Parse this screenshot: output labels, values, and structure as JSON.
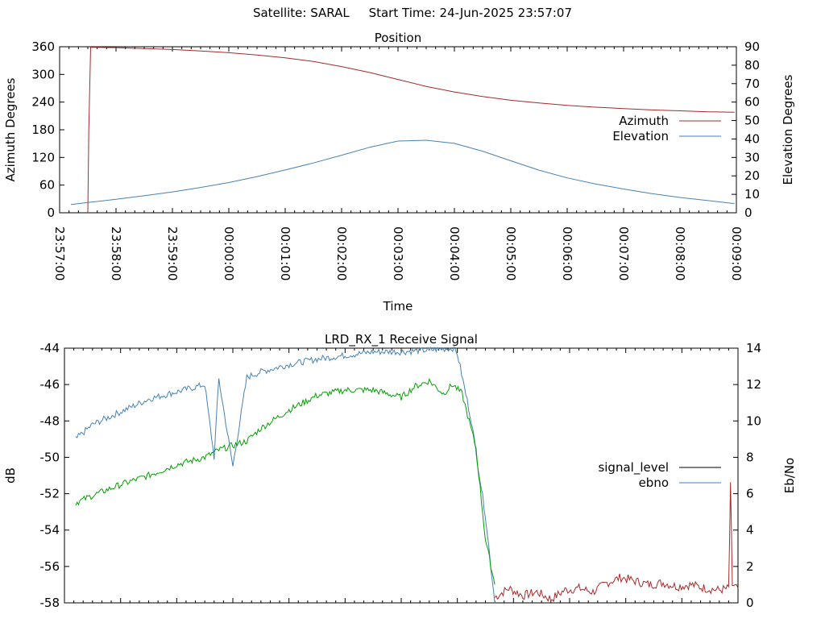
{
  "header": {
    "satellite_label": "Satellite: SARAL",
    "start_label": "Start Time: 24-Jun-2025 23:57:07"
  },
  "chart_data": [
    {
      "type": "line",
      "title": "Position",
      "xlabel": "Time",
      "ylabel": "Azimuth Degrees",
      "y2label": "Elevation Degrees",
      "xlim": [
        "23:57:00",
        "00:09:00"
      ],
      "ylim": [
        0,
        360
      ],
      "y2lim": [
        0,
        90
      ],
      "x_ticks": [
        "23:57:00",
        "23:58:00",
        "23:59:00",
        "00:00:00",
        "00:01:00",
        "00:02:00",
        "00:03:00",
        "00:04:00",
        "00:05:00",
        "00:06:00",
        "00:07:00",
        "00:08:00",
        "00:09:00"
      ],
      "y_ticks": [
        "0",
        "60",
        "120",
        "180",
        "240",
        "300",
        "360"
      ],
      "y2_ticks": [
        "0",
        "10",
        "20",
        "30",
        "40",
        "50",
        "60",
        "70",
        "80",
        "90"
      ],
      "legend_position": "right",
      "series": [
        {
          "name": "Azimuth",
          "axis": "left",
          "color": "#a52a2a",
          "x": [
            "23:57:30",
            "23:57:31",
            "23:57:31",
            "23:57:33",
            "23:58:00",
            "23:58:30",
            "23:59:00",
            "23:59:30",
            "00:00:00",
            "00:00:30",
            "00:01:00",
            "00:01:30",
            "00:02:00",
            "00:02:30",
            "00:03:00",
            "00:03:30",
            "00:04:00",
            "00:04:30",
            "00:05:00",
            "00:05:30",
            "00:06:00",
            "00:06:30",
            "00:07:00",
            "00:07:30",
            "00:08:00",
            "00:08:30",
            "00:08:58"
          ],
          "values": [
            0,
            180,
            180,
            359,
            358,
            356,
            354,
            351,
            347,
            342,
            336,
            328,
            317,
            304,
            289,
            274,
            262,
            252,
            244,
            238,
            233,
            229,
            226,
            223,
            221,
            219,
            218
          ]
        },
        {
          "name": "Elevation",
          "axis": "right",
          "color": "#4682b4",
          "x": [
            "23:57:12",
            "23:57:30",
            "23:58:00",
            "23:58:30",
            "23:59:00",
            "23:59:30",
            "00:00:00",
            "00:00:30",
            "00:01:00",
            "00:01:30",
            "00:02:00",
            "00:02:30",
            "00:03:00",
            "00:03:30",
            "00:04:00",
            "00:04:30",
            "00:05:00",
            "00:05:30",
            "00:06:00",
            "00:06:30",
            "00:07:00",
            "00:07:30",
            "00:08:00",
            "00:08:30",
            "00:08:58"
          ],
          "values": [
            4.5,
            5.6,
            7.3,
            9.2,
            11.3,
            13.7,
            16.4,
            19.6,
            23.2,
            27,
            31.2,
            35.5,
            38.9,
            39.3,
            37.6,
            33.4,
            28.2,
            23.1,
            18.9,
            15.6,
            12.9,
            10.4,
            8.3,
            6.6,
            5
          ]
        }
      ]
    },
    {
      "type": "line",
      "title": "LRD_RX_1 Receive Signal",
      "xlabel": "",
      "ylabel": "dB",
      "y2label": "Eb/No",
      "xlim": [
        "23:57:00",
        "00:09:00"
      ],
      "ylim": [
        -58,
        -44
      ],
      "y2lim": [
        0,
        14
      ],
      "y_ticks": [
        "-44",
        "-46",
        "-48",
        "-50",
        "-52",
        "-54",
        "-56",
        "-58"
      ],
      "y2_ticks": [
        "0",
        "2",
        "4",
        "6",
        "8",
        "10",
        "12",
        "14"
      ],
      "legend_position": "right",
      "series": [
        {
          "name": "signal_level",
          "axis": "left",
          "color": "#a52a2a",
          "legend_color": "#000000",
          "x": [
            "00:04:40",
            "00:04:55",
            "00:05:10",
            "00:05:25",
            "00:05:40",
            "00:05:55",
            "00:06:10",
            "00:06:25",
            "00:06:40",
            "00:06:55",
            "00:07:10",
            "00:07:25",
            "00:07:40",
            "00:07:55",
            "00:08:10",
            "00:08:25",
            "00:08:40",
            "00:08:50",
            "00:08:52",
            "00:08:54",
            "00:09:00"
          ],
          "values": [
            -57.7,
            -57.2,
            -57.6,
            -57.4,
            -57.8,
            -57.3,
            -57.2,
            -57.4,
            -56.9,
            -56.6,
            -56.8,
            -57.0,
            -56.9,
            -57.1,
            -57.0,
            -57.2,
            -57.3,
            -57.2,
            -51.6,
            -57.0,
            -57.2
          ]
        },
        {
          "name": "ebno",
          "axis": "right",
          "color": "#4682b4",
          "x": [
            "23:57:12",
            "23:57:30",
            "23:58:00",
            "23:58:30",
            "23:59:00",
            "23:59:30",
            "23:59:40",
            "23:59:45",
            "00:00:00",
            "00:00:15",
            "00:00:30",
            "00:01:00",
            "00:01:30",
            "00:02:00",
            "00:02:30",
            "00:03:00",
            "00:03:30",
            "00:03:55",
            "00:04:00",
            "00:04:15",
            "00:04:30",
            "00:04:40"
          ],
          "values": [
            9,
            9.8,
            10.5,
            11.2,
            11.6,
            12.0,
            8.0,
            12.3,
            7.5,
            12.4,
            12.7,
            13.1,
            13.4,
            13.6,
            13.8,
            13.8,
            13.9,
            14,
            13.7,
            10,
            4.8,
            0
          ]
        },
        {
          "name": "",
          "axis": "right",
          "color": "#00a000",
          "x": [
            "23:57:12",
            "23:57:30",
            "23:58:00",
            "23:58:30",
            "23:59:00",
            "23:59:30",
            "23:59:45",
            "00:00:15",
            "00:00:30",
            "00:01:00",
            "00:01:30",
            "00:02:00",
            "00:02:30",
            "00:03:00",
            "00:03:15",
            "00:03:30",
            "00:03:45",
            "00:03:55",
            "00:04:05",
            "00:04:20",
            "00:04:30",
            "00:04:40"
          ],
          "values": [
            5.5,
            5.9,
            6.5,
            7.0,
            7.6,
            8.0,
            8.4,
            8.9,
            9.6,
            10.6,
            11.4,
            11.7,
            11.7,
            11.3,
            11.9,
            12.2,
            11.5,
            12.0,
            11.5,
            8.5,
            3.5,
            1
          ]
        }
      ]
    }
  ]
}
